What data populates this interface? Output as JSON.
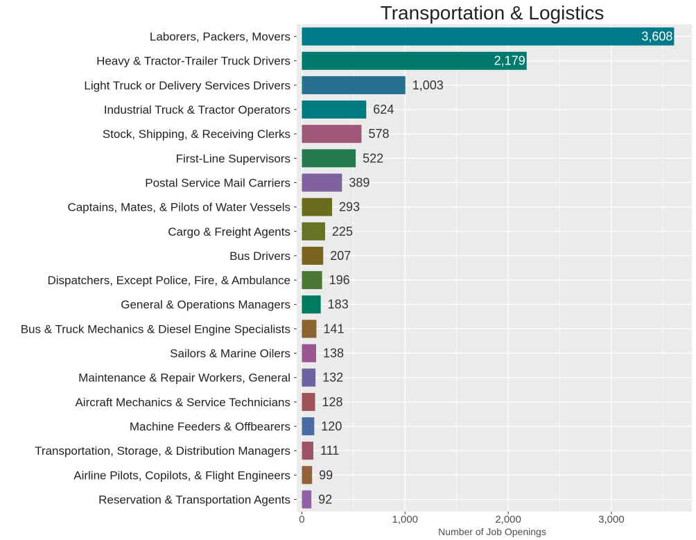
{
  "chart_data": {
    "type": "bar",
    "orientation": "horizontal",
    "title": "Transportation & Logistics",
    "xlabel": "Number of Job Openings",
    "ylabel": "",
    "xlim": [
      -50,
      3780
    ],
    "xticks": [
      0,
      1000,
      2000,
      3000
    ],
    "xtick_labels": [
      "0",
      "1,000",
      "2,000",
      "3,000"
    ],
    "grid": true,
    "legend": "none",
    "panel_background": "#EBEBEB",
    "grid_color": "#FFFFFF",
    "categories": [
      "Laborers, Packers, Movers",
      "Heavy & Tractor-Trailer Truck Drivers",
      "Light Truck or Delivery Services Drivers",
      "Industrial Truck & Tractor Operators",
      "Stock, Shipping, & Receiving Clerks",
      "First-Line Supervisors",
      "Postal Service Mail Carriers",
      "Captains, Mates, & Pilots of Water Vessels",
      "Cargo & Freight Agents",
      "Bus Drivers",
      "Dispatchers, Except Police, Fire, & Ambulance",
      "General & Operations Managers",
      "Bus & Truck Mechanics & Diesel Engine Specialists",
      "Sailors & Marine Oilers",
      "Maintenance & Repair Workers, General",
      "Aircraft Mechanics & Service Technicians",
      "Machine Feeders & Offbearers",
      "Transportation, Storage, & Distribution Managers",
      "Airline Pilots, Copilots, & Flight Engineers",
      "Reservation & Transportation Agents"
    ],
    "values": [
      3608,
      2179,
      1003,
      624,
      578,
      522,
      389,
      293,
      225,
      207,
      196,
      183,
      141,
      138,
      132,
      128,
      120,
      111,
      99,
      92
    ],
    "value_labels": [
      "3,608",
      "2,179",
      "1,003",
      "624",
      "578",
      "522",
      "389",
      "293",
      "225",
      "207",
      "196",
      "183",
      "141",
      "138",
      "132",
      "128",
      "120",
      "111",
      "99",
      "92"
    ],
    "colors": [
      "#007989",
      "#007A6D",
      "#26718F",
      "#007A81",
      "#A05879",
      "#247A4C",
      "#80629E",
      "#6B6B1D",
      "#647325",
      "#7A651E",
      "#4C7835",
      "#007A60",
      "#8A6330",
      "#9A5690",
      "#6E62A1",
      "#9E5355",
      "#4A6DA1",
      "#9E5369",
      "#95613D",
      "#9061A5"
    ]
  }
}
